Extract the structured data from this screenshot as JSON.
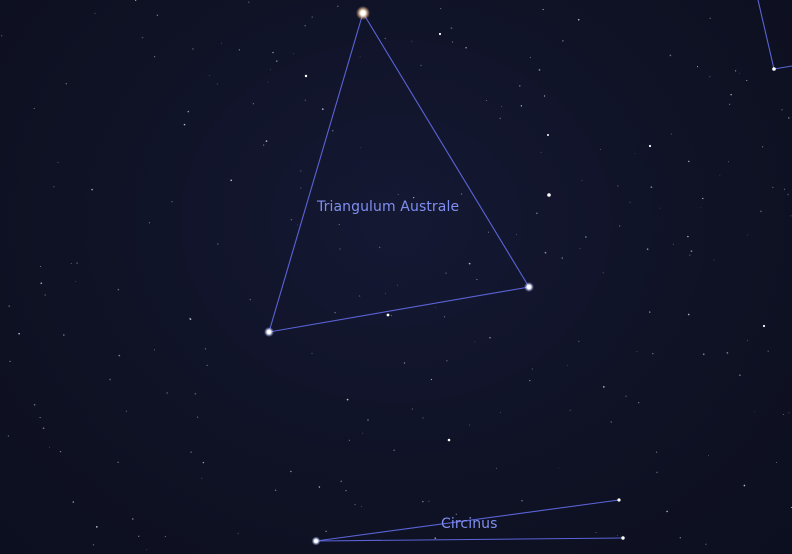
{
  "constellations": {
    "triangulum_australe": {
      "label": "Triangulum Australe"
    },
    "circinus": {
      "label": "Circinus"
    }
  },
  "colors": {
    "background": "#0f1224",
    "line": "#5a63d6",
    "label": "#7f8ff0",
    "star": "#ffffff"
  }
}
